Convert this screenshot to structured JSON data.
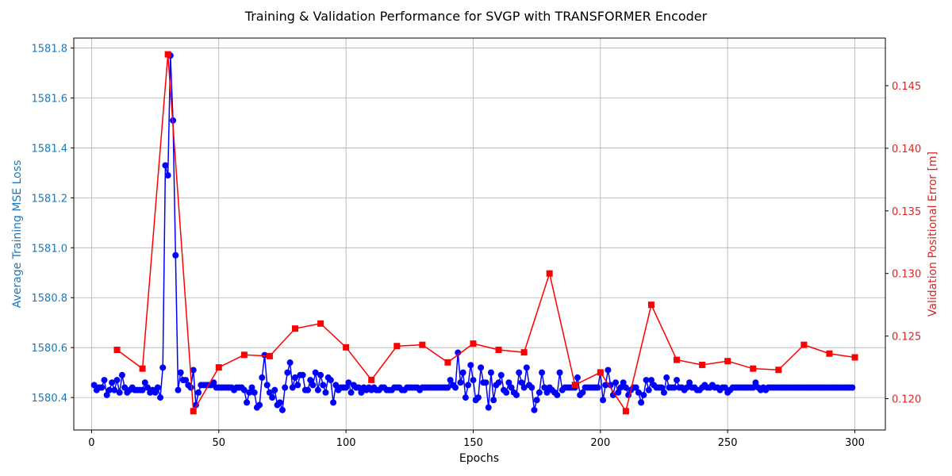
{
  "chart_data": {
    "type": "line",
    "title": "Training & Validation Performance for SVGP with TRANSFORMER Encoder",
    "xlabel": "Epochs",
    "ylabel_left": "Average Training MSE Loss",
    "ylabel_right": "Validation Positional Error [m]",
    "xlim": [
      -7,
      312
    ],
    "ylim_left": [
      1580.27,
      1581.84
    ],
    "ylim_right": [
      0.1175,
      0.1488
    ],
    "x_ticks": [
      0,
      50,
      100,
      150,
      200,
      250,
      300
    ],
    "y_ticks_left": [
      1580.4,
      1580.6,
      1580.8,
      1581.0,
      1581.2,
      1581.4,
      1581.6,
      1581.8
    ],
    "y_ticks_right": [
      0.12,
      0.125,
      0.13,
      0.135,
      0.14,
      0.145
    ],
    "grid": true,
    "colors": {
      "left_axis": "#1f77b4",
      "right_axis": "#d62728",
      "train": "#0000ff",
      "val": "#ff0000"
    },
    "series": [
      {
        "axis": "left",
        "marker": "circle",
        "x_start": 1,
        "values": [
          1580.45,
          1580.43,
          1580.44,
          1580.44,
          1580.47,
          1580.41,
          1580.43,
          1580.46,
          1580.43,
          1580.47,
          1580.42,
          1580.49,
          1580.44,
          1580.42,
          1580.43,
          1580.44,
          1580.43,
          1580.43,
          1580.43,
          1580.43,
          1580.46,
          1580.44,
          1580.42,
          1580.43,
          1580.42,
          1580.44,
          1580.4,
          1580.52,
          1581.33,
          1581.29,
          1581.77,
          1581.51,
          1580.97,
          1580.43,
          1580.5,
          1580.47,
          1580.47,
          1580.45,
          1580.44,
          1580.51,
          1580.37,
          1580.42,
          1580.45,
          1580.45,
          1580.45,
          1580.45,
          1580.45,
          1580.46,
          1580.44,
          1580.44,
          1580.44,
          1580.44,
          1580.44,
          1580.44,
          1580.44,
          1580.43,
          1580.44,
          1580.44,
          1580.44,
          1580.43,
          1580.38,
          1580.42,
          1580.44,
          1580.42,
          1580.36,
          1580.37,
          1580.48,
          1580.57,
          1580.45,
          1580.42,
          1580.4,
          1580.43,
          1580.37,
          1580.38,
          1580.35,
          1580.44,
          1580.5,
          1580.54,
          1580.44,
          1580.48,
          1580.45,
          1580.49,
          1580.49,
          1580.43,
          1580.43,
          1580.47,
          1580.45,
          1580.5,
          1580.43,
          1580.49,
          1580.45,
          1580.42,
          1580.48,
          1580.47,
          1580.38,
          1580.45,
          1580.43,
          1580.44,
          1580.44,
          1580.44,
          1580.46,
          1580.42,
          1580.45,
          1580.44,
          1580.44,
          1580.42,
          1580.44,
          1580.43,
          1580.44,
          1580.43,
          1580.44,
          1580.43,
          1580.43,
          1580.44,
          1580.44,
          1580.43,
          1580.43,
          1580.43,
          1580.44,
          1580.44,
          1580.44,
          1580.43,
          1580.43,
          1580.44,
          1580.44,
          1580.44,
          1580.44,
          1580.44,
          1580.43,
          1580.44,
          1580.44,
          1580.44,
          1580.44,
          1580.44,
          1580.44,
          1580.44,
          1580.44,
          1580.44,
          1580.44,
          1580.44,
          1580.47,
          1580.45,
          1580.44,
          1580.58,
          1580.46,
          1580.5,
          1580.4,
          1580.45,
          1580.53,
          1580.47,
          1580.39,
          1580.4,
          1580.52,
          1580.46,
          1580.46,
          1580.36,
          1580.5,
          1580.39,
          1580.45,
          1580.46,
          1580.49,
          1580.43,
          1580.42,
          1580.46,
          1580.44,
          1580.42,
          1580.41,
          1580.5,
          1580.46,
          1580.44,
          1580.52,
          1580.45,
          1580.44,
          1580.35,
          1580.39,
          1580.42,
          1580.5,
          1580.44,
          1580.42,
          1580.44,
          1580.43,
          1580.42,
          1580.41,
          1580.5,
          1580.43,
          1580.44,
          1580.44,
          1580.44,
          1580.44,
          1580.44,
          1580.48,
          1580.41,
          1580.42,
          1580.44,
          1580.44,
          1580.44,
          1580.44,
          1580.44,
          1580.44,
          1580.5,
          1580.39,
          1580.45,
          1580.51,
          1580.45,
          1580.41,
          1580.46,
          1580.42,
          1580.44,
          1580.46,
          1580.44,
          1580.41,
          1580.43,
          1580.44,
          1580.44,
          1580.42,
          1580.38,
          1580.41,
          1580.47,
          1580.43,
          1580.47,
          1580.45,
          1580.44,
          1580.44,
          1580.44,
          1580.42,
          1580.48,
          1580.44,
          1580.44,
          1580.44,
          1580.47,
          1580.44,
          1580.44,
          1580.43,
          1580.44,
          1580.46,
          1580.44,
          1580.44,
          1580.43,
          1580.43,
          1580.44,
          1580.45,
          1580.44,
          1580.44,
          1580.45,
          1580.44,
          1580.44,
          1580.43,
          1580.44,
          1580.44,
          1580.42,
          1580.43,
          1580.44,
          1580.44,
          1580.44,
          1580.44,
          1580.44,
          1580.44,
          1580.44,
          1580.44,
          1580.44,
          1580.46,
          1580.44,
          1580.43,
          1580.44,
          1580.43,
          1580.44,
          1580.44,
          1580.44,
          1580.44,
          1580.44,
          1580.44,
          1580.44,
          1580.44,
          1580.44,
          1580.44,
          1580.44,
          1580.44,
          1580.44,
          1580.44,
          1580.44,
          1580.44,
          1580.44,
          1580.44,
          1580.44,
          1580.44,
          1580.44,
          1580.44,
          1580.44,
          1580.44,
          1580.44,
          1580.44,
          1580.44,
          1580.44,
          1580.44,
          1580.44,
          1580.44,
          1580.44,
          1580.44,
          1580.44
        ]
      },
      {
        "axis": "right",
        "marker": "square",
        "x": [
          10,
          20,
          30,
          40,
          50,
          60,
          70,
          80,
          90,
          100,
          110,
          120,
          130,
          140,
          150,
          160,
          170,
          180,
          190,
          200,
          210,
          220,
          230,
          240,
          250,
          260,
          270,
          280,
          290,
          300
        ],
        "values": [
          0.1239,
          0.1224,
          0.1475,
          0.119,
          0.1225,
          0.1235,
          0.1234,
          0.1256,
          0.126,
          0.1241,
          0.1215,
          0.1242,
          0.1243,
          0.1229,
          0.1244,
          0.1239,
          0.1237,
          0.13,
          0.1211,
          0.1221,
          0.119,
          0.1275,
          0.1231,
          0.1227,
          0.123,
          0.1224,
          0.1223,
          0.1243,
          0.1236,
          0.1233
        ]
      }
    ]
  }
}
